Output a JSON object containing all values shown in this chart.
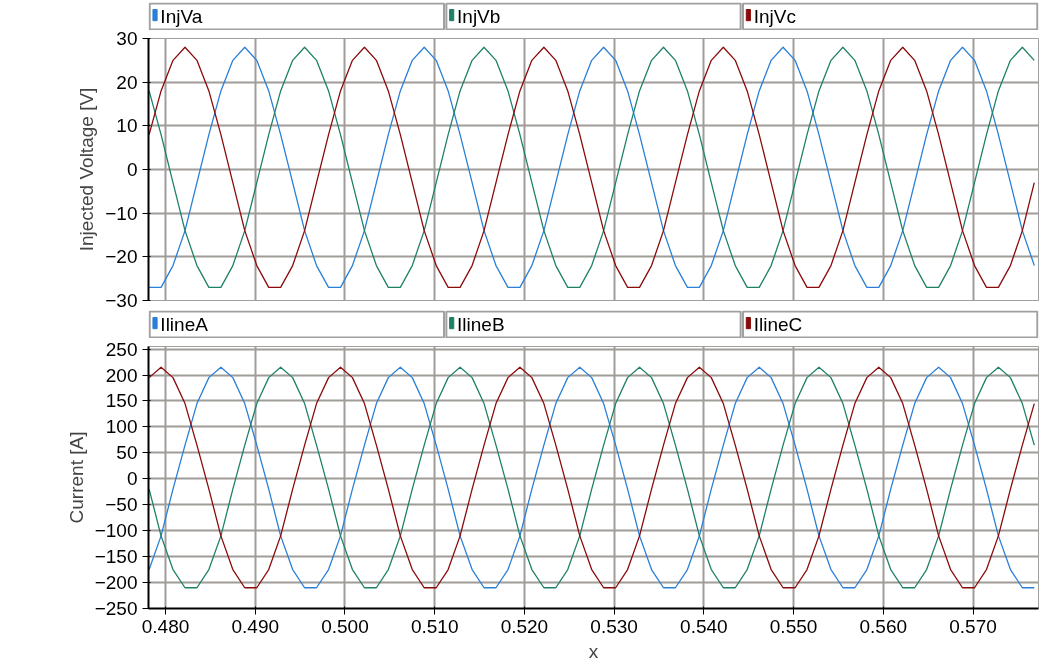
{
  "chart_data": [
    {
      "type": "line",
      "ylabel": "Injected Voltage [V]",
      "legend": "top",
      "grid": true,
      "tick_labels": "y",
      "line_style": "solid",
      "marker": "none",
      "xlim": [
        0.4781,
        0.5773
      ],
      "ylim": [
        -30,
        30
      ],
      "yticks": [
        -30,
        -20,
        -10,
        0,
        10,
        20,
        30
      ],
      "xticks": [
        {
          "value": 0.48,
          "label": null
        },
        {
          "value": 0.49,
          "label": null
        },
        {
          "value": 0.5,
          "label": null
        },
        {
          "value": 0.51,
          "label": null
        },
        {
          "value": 0.52,
          "label": null
        },
        {
          "value": 0.53,
          "label": null
        },
        {
          "value": 0.54,
          "label": null
        },
        {
          "value": 0.55,
          "label": null
        },
        {
          "value": 0.56,
          "label": null
        },
        {
          "value": 0.57,
          "label": null
        }
      ],
      "x": [
        0.47817,
        0.4795,
        0.48083,
        0.48217,
        0.4835,
        0.48483,
        0.48617,
        0.4875,
        0.48883,
        0.49017,
        0.4915,
        0.49283,
        0.49417,
        0.4955,
        0.49683,
        0.49817,
        0.4995,
        0.50083,
        0.50217,
        0.5035,
        0.50483,
        0.50617,
        0.5075,
        0.50883,
        0.51017,
        0.5115,
        0.51283,
        0.51417,
        0.5155,
        0.51683,
        0.51817,
        0.5195,
        0.52083,
        0.52217,
        0.5235,
        0.52483,
        0.52617,
        0.5275,
        0.52883,
        0.53017,
        0.5315,
        0.53283,
        0.53417,
        0.5355,
        0.53683,
        0.53817,
        0.5395,
        0.54083,
        0.54217,
        0.5435,
        0.54483,
        0.54617,
        0.5475,
        0.54883,
        0.55017,
        0.5515,
        0.55283,
        0.55417,
        0.5555,
        0.55683,
        0.55817,
        0.5595,
        0.56083,
        0.56217,
        0.5635,
        0.56483,
        0.56617,
        0.5675,
        0.56883,
        0.57017,
        0.5715,
        0.57283,
        0.57417,
        0.5755,
        0.57683
      ],
      "series": [
        {
          "name": "InjVa",
          "color": "#2a7fd6",
          "values": [
            -27,
            -27,
            -22,
            -14,
            -3,
            8,
            18,
            25,
            28,
            25,
            18,
            8,
            -3,
            -14,
            -22,
            -27,
            -27,
            -22,
            -14,
            -3,
            8,
            18,
            25,
            28,
            25,
            18,
            8,
            -3,
            -14,
            -22,
            -27,
            -27,
            -22,
            -14,
            -3,
            8,
            18,
            25,
            28,
            25,
            18,
            8,
            -3,
            -14,
            -22,
            -27,
            -27,
            -22,
            -14,
            -3,
            8,
            18,
            25,
            28,
            25,
            18,
            8,
            -3,
            -14,
            -22,
            -27,
            -27,
            -22,
            -14,
            -3,
            8,
            18,
            25,
            28,
            25,
            18,
            8,
            -3,
            -14,
            -22
          ]
        },
        {
          "name": "InjVb",
          "color": "#1f8068",
          "values": [
            18,
            8,
            -3,
            -14,
            -22,
            -27,
            -27,
            -22,
            -14,
            -3,
            8,
            18,
            25,
            28,
            25,
            18,
            8,
            -3,
            -14,
            -22,
            -27,
            -27,
            -22,
            -14,
            -3,
            8,
            18,
            25,
            28,
            25,
            18,
            8,
            -3,
            -14,
            -22,
            -27,
            -27,
            -22,
            -14,
            -3,
            8,
            18,
            25,
            28,
            25,
            18,
            8,
            -3,
            -14,
            -22,
            -27,
            -27,
            -22,
            -14,
            -3,
            8,
            18,
            25,
            28,
            25,
            18,
            8,
            -3,
            -14,
            -22,
            -27,
            -27,
            -22,
            -14,
            -3,
            8,
            18,
            25,
            28,
            25
          ]
        },
        {
          "name": "InjVc",
          "color": "#8b0a0a",
          "values": [
            8,
            18,
            25,
            28,
            25,
            18,
            8,
            -3,
            -14,
            -22,
            -27,
            -27,
            -22,
            -14,
            -3,
            8,
            18,
            25,
            28,
            25,
            18,
            8,
            -3,
            -14,
            -22,
            -27,
            -27,
            -22,
            -14,
            -3,
            8,
            18,
            25,
            28,
            25,
            18,
            8,
            -3,
            -14,
            -22,
            -27,
            -27,
            -22,
            -14,
            -3,
            8,
            18,
            25,
            28,
            25,
            18,
            8,
            -3,
            -14,
            -22,
            -27,
            -27,
            -22,
            -14,
            -3,
            8,
            18,
            25,
            28,
            25,
            18,
            8,
            -3,
            -14,
            -22,
            -27,
            -27,
            -22,
            -14,
            -3
          ]
        }
      ]
    },
    {
      "type": "line",
      "ylabel": "Current [A]",
      "xlabel": "x",
      "legend": "top",
      "grid": true,
      "line_style": "solid",
      "marker": "none",
      "xlim": [
        0.4781,
        0.5773
      ],
      "ylim": [
        -250,
        255
      ],
      "yticks": [
        -250,
        -200,
        -150,
        -100,
        -50,
        0,
        50,
        100,
        150,
        200,
        250
      ],
      "xticks": [
        {
          "value": 0.48,
          "label": "0.480"
        },
        {
          "value": 0.49,
          "label": "0.490"
        },
        {
          "value": 0.5,
          "label": "0.500"
        },
        {
          "value": 0.51,
          "label": "0.510"
        },
        {
          "value": 0.52,
          "label": "0.520"
        },
        {
          "value": 0.53,
          "label": "0.530"
        },
        {
          "value": 0.54,
          "label": "0.540"
        },
        {
          "value": 0.55,
          "label": "0.550"
        },
        {
          "value": 0.56,
          "label": "0.560"
        },
        {
          "value": 0.57,
          "label": "0.570"
        }
      ],
      "x": [
        0.47817,
        0.4795,
        0.48083,
        0.48217,
        0.4835,
        0.48483,
        0.48617,
        0.4875,
        0.48883,
        0.49017,
        0.4915,
        0.49283,
        0.49417,
        0.4955,
        0.49683,
        0.49817,
        0.4995,
        0.50083,
        0.50217,
        0.5035,
        0.50483,
        0.50617,
        0.5075,
        0.50883,
        0.51017,
        0.5115,
        0.51283,
        0.51417,
        0.5155,
        0.51683,
        0.51817,
        0.5195,
        0.52083,
        0.52217,
        0.5235,
        0.52483,
        0.52617,
        0.5275,
        0.52883,
        0.53017,
        0.5315,
        0.53283,
        0.53417,
        0.5355,
        0.53683,
        0.53817,
        0.5395,
        0.54083,
        0.54217,
        0.5435,
        0.54483,
        0.54617,
        0.5475,
        0.54883,
        0.55017,
        0.5515,
        0.55283,
        0.55417,
        0.5555,
        0.55683,
        0.55817,
        0.5595,
        0.56083,
        0.56217,
        0.5635,
        0.56483,
        0.56617,
        0.5675,
        0.56883,
        0.57017,
        0.5715,
        0.57283,
        0.57417,
        0.5755,
        0.57683
      ],
      "series": [
        {
          "name": "IlineA",
          "color": "#2a7fd6",
          "values": [
            -175,
            -110,
            -20,
            65,
            145,
            195,
            215,
            195,
            145,
            65,
            -20,
            -110,
            -175,
            -210,
            -210,
            -175,
            -110,
            -20,
            65,
            145,
            195,
            215,
            195,
            145,
            65,
            -20,
            -110,
            -175,
            -210,
            -210,
            -175,
            -110,
            -20,
            65,
            145,
            195,
            215,
            195,
            145,
            65,
            -20,
            -110,
            -175,
            -210,
            -210,
            -175,
            -110,
            -20,
            65,
            145,
            195,
            215,
            195,
            145,
            65,
            -20,
            -110,
            -175,
            -210,
            -210,
            -175,
            -110,
            -20,
            65,
            145,
            195,
            215,
            195,
            145,
            65,
            -20,
            -110,
            -175,
            -210,
            -210
          ]
        },
        {
          "name": "IlineB",
          "color": "#1f8068",
          "values": [
            -20,
            -110,
            -175,
            -210,
            -210,
            -175,
            -110,
            -20,
            65,
            145,
            195,
            215,
            195,
            145,
            65,
            -20,
            -110,
            -175,
            -210,
            -210,
            -175,
            -110,
            -20,
            65,
            145,
            195,
            215,
            195,
            145,
            65,
            -20,
            -110,
            -175,
            -210,
            -210,
            -175,
            -110,
            -20,
            65,
            145,
            195,
            215,
            195,
            145,
            65,
            -20,
            -110,
            -175,
            -210,
            -210,
            -175,
            -110,
            -20,
            65,
            145,
            195,
            215,
            195,
            145,
            65,
            -20,
            -110,
            -175,
            -210,
            -210,
            -175,
            -110,
            -20,
            65,
            145,
            195,
            215,
            195,
            145,
            65
          ]
        },
        {
          "name": "IlineC",
          "color": "#8b0a0a",
          "values": [
            195,
            215,
            195,
            145,
            65,
            -20,
            -110,
            -175,
            -210,
            -210,
            -175,
            -110,
            -20,
            65,
            145,
            195,
            215,
            195,
            145,
            65,
            -20,
            -110,
            -175,
            -210,
            -210,
            -175,
            -110,
            -20,
            65,
            145,
            195,
            215,
            195,
            145,
            65,
            -20,
            -110,
            -175,
            -210,
            -210,
            -175,
            -110,
            -20,
            65,
            145,
            195,
            215,
            195,
            145,
            65,
            -20,
            -110,
            -175,
            -210,
            -210,
            -175,
            -110,
            -20,
            65,
            145,
            195,
            215,
            195,
            145,
            65,
            -20,
            -110,
            -175,
            -210,
            -210,
            -175,
            -110,
            -20,
            65,
            145
          ]
        }
      ]
    }
  ]
}
